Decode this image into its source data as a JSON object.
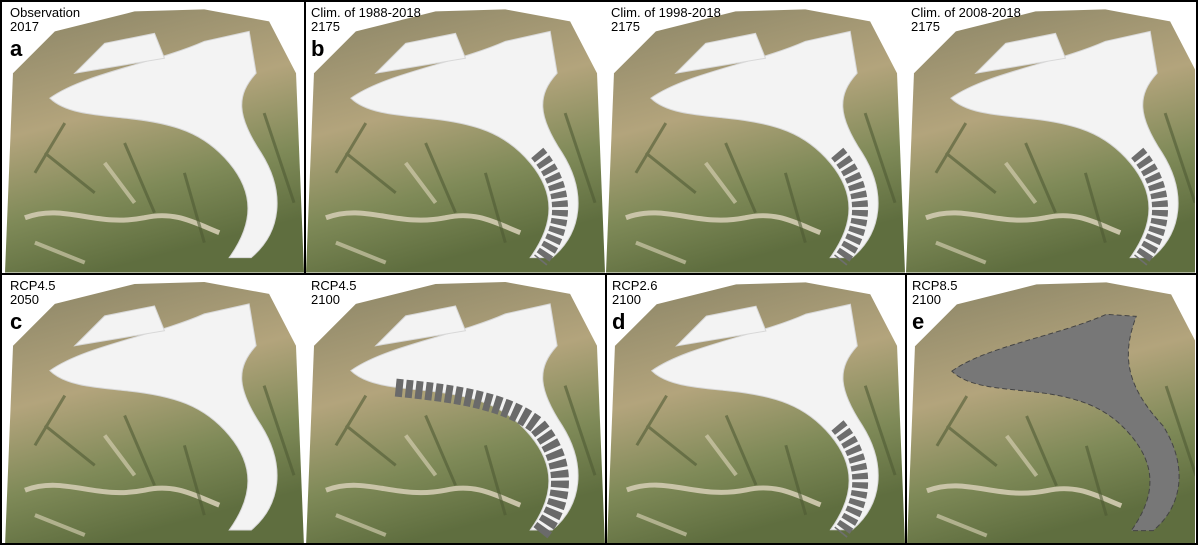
{
  "panels": [
    {
      "line1": "Observation",
      "line2": "2017",
      "letter": "a"
    },
    {
      "line1": "Clim. of 1988-2018",
      "line2": "2175",
      "letter": "b"
    },
    {
      "line1": "Clim. of 1998-2018",
      "line2": "2175"
    },
    {
      "line1": "Clim. of 2008-2018",
      "line2": "2175"
    },
    {
      "line1": "RCP4.5",
      "line2": "2050",
      "letter": "c"
    },
    {
      "line1": "RCP4.5",
      "line2": "2100"
    },
    {
      "line1": "RCP2.6",
      "line2": "2100",
      "letter": "d"
    },
    {
      "line1": "RCP8.5",
      "line2": "2100",
      "letter": "e"
    }
  ]
}
